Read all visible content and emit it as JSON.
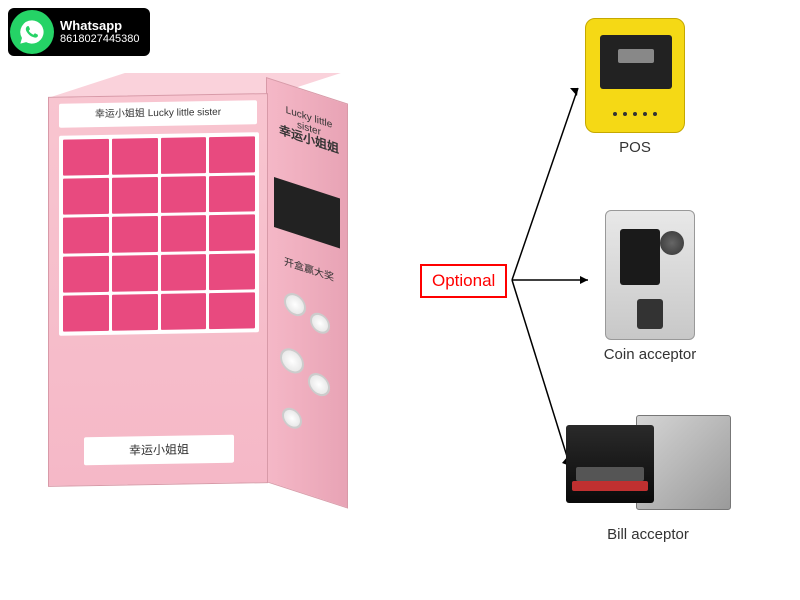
{
  "whatsapp": {
    "label": "Whatsapp",
    "number": "8618027445380"
  },
  "machine": {
    "header": "幸运小姐姐    Lucky little sister",
    "bottom_label": "幸运小姐姐",
    "side_title": "Lucky little sister",
    "side_subtitle": "幸运小姐姐",
    "side_promo_text": "开盒赢大奖",
    "body_color": "#f5b8c7",
    "cell_color": "#e84a7f",
    "grid": {
      "rows": 5,
      "cols": 4
    }
  },
  "optional": {
    "label": "Optional",
    "box_color": "#ff0000"
  },
  "devices": {
    "pos": {
      "label": "POS",
      "body_color": "#f5d915"
    },
    "coin": {
      "label": "Coin acceptor",
      "body_color": "#d0d0d0"
    },
    "bill": {
      "label": "Bill acceptor",
      "front_color": "#1a1a1a",
      "rear_color": "#b0b0b0",
      "lip_color": "#c03030"
    }
  },
  "arrows": {
    "stroke": "#000000",
    "width": 1.5
  }
}
